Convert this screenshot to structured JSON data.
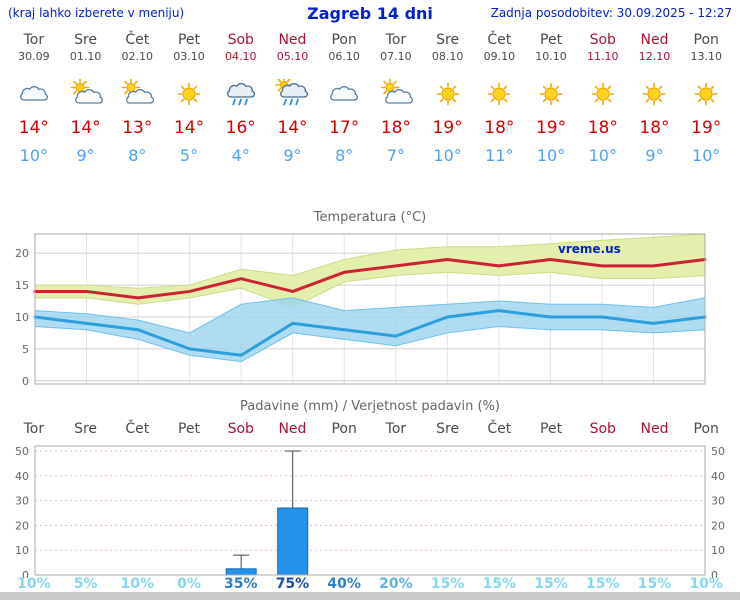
{
  "header": {
    "note": "(kraj lahko izberete v meniju)",
    "title": "Zagreb 14 dni",
    "updated": "Zadnja posodobitev: 30.09.2025 - 12:27"
  },
  "days": [
    {
      "name": "Tor",
      "date": "30.09",
      "weekend": false,
      "icon": "cloudy",
      "tmax": "14°",
      "tmin": "10°",
      "precip_prob": "10%"
    },
    {
      "name": "Sre",
      "date": "01.10",
      "weekend": false,
      "icon": "partly-cloudy",
      "tmax": "14°",
      "tmin": "9°",
      "precip_prob": "5%"
    },
    {
      "name": "Čet",
      "date": "02.10",
      "weekend": false,
      "icon": "partly-cloudy",
      "tmax": "13°",
      "tmin": "8°",
      "precip_prob": "10%"
    },
    {
      "name": "Pet",
      "date": "03.10",
      "weekend": false,
      "icon": "sunny",
      "tmax": "14°",
      "tmin": "5°",
      "precip_prob": "0%"
    },
    {
      "name": "Sob",
      "date": "04.10",
      "weekend": true,
      "icon": "rain",
      "tmax": "16°",
      "tmin": "4°",
      "precip_prob": "35%"
    },
    {
      "name": "Ned",
      "date": "05.10",
      "weekend": true,
      "icon": "rain-sun",
      "tmax": "14°",
      "tmin": "9°",
      "precip_prob": "75%"
    },
    {
      "name": "Pon",
      "date": "06.10",
      "weekend": false,
      "icon": "cloudy",
      "tmax": "17°",
      "tmin": "8°",
      "precip_prob": "40%"
    },
    {
      "name": "Tor",
      "date": "07.10",
      "weekend": false,
      "icon": "partly-cloudy",
      "tmax": "18°",
      "tmin": "7°",
      "precip_prob": "20%"
    },
    {
      "name": "Sre",
      "date": "08.10",
      "weekend": false,
      "icon": "sunny",
      "tmax": "19°",
      "tmin": "10°",
      "precip_prob": "15%"
    },
    {
      "name": "Čet",
      "date": "09.10",
      "weekend": false,
      "icon": "sunny",
      "tmax": "18°",
      "tmin": "11°",
      "precip_prob": "15%"
    },
    {
      "name": "Pet",
      "date": "10.10",
      "weekend": false,
      "icon": "sunny",
      "tmax": "19°",
      "tmin": "10°",
      "precip_prob": "15%"
    },
    {
      "name": "Sob",
      "date": "11.10",
      "weekend": true,
      "icon": "sunny",
      "tmax": "18°",
      "tmin": "10°",
      "precip_prob": "15%"
    },
    {
      "name": "Ned",
      "date": "12.10",
      "weekend": true,
      "icon": "sunny",
      "tmax": "18°",
      "tmin": "9°",
      "precip_prob": "15%"
    },
    {
      "name": "Pon",
      "date": "13.10",
      "weekend": false,
      "icon": "sunny",
      "tmax": "19°",
      "tmin": "10°",
      "precip_prob": "10%"
    }
  ],
  "chart_data": [
    {
      "type": "line",
      "title": "Temperatura (°C)",
      "watermark": "vreme.us",
      "categories": [
        "Tor 30.09",
        "Sre 01.10",
        "Čet 02.10",
        "Pet 03.10",
        "Sob 04.10",
        "Ned 05.10",
        "Pon 06.10",
        "Tor 07.10",
        "Sre 08.10",
        "Čet 09.10",
        "Pet 10.10",
        "Sob 11.10",
        "Ned 12.10",
        "Pon 13.10"
      ],
      "yticks": [
        0,
        5,
        10,
        15,
        20
      ],
      "ylim": [
        -0.5,
        23
      ],
      "grid": true,
      "series": [
        {
          "name": "tmax-line",
          "color": "#cc2233",
          "values": [
            14,
            14,
            13,
            14,
            16,
            14,
            17,
            18,
            19,
            18,
            19,
            18,
            18,
            19
          ]
        },
        {
          "name": "tmin-line",
          "color": "#2b9fdd",
          "values": [
            10,
            9,
            8,
            5,
            4,
            9,
            8,
            7,
            10,
            11,
            10,
            10,
            9,
            10
          ]
        }
      ],
      "bands": [
        {
          "name": "tmax-range-band",
          "fill": "#e4efad",
          "stroke": "#c8dd88",
          "opacity": 1,
          "upper": [
            15,
            15,
            14.5,
            15,
            17.5,
            16.5,
            19,
            20.5,
            21,
            21,
            21.5,
            22,
            22.5,
            23
          ],
          "lower": [
            13,
            13,
            12,
            13,
            14.5,
            11.5,
            15.5,
            16.5,
            17,
            16.5,
            17,
            16,
            16,
            16.5
          ]
        },
        {
          "name": "tmin-range-band",
          "fill": "#9fd4ef",
          "stroke": "#6cc0ea",
          "opacity": 0.82,
          "upper": [
            11,
            10.5,
            9.5,
            7.5,
            12,
            13,
            11,
            11.5,
            12,
            12.5,
            12,
            12,
            11.5,
            13
          ],
          "lower": [
            8.5,
            8,
            6.5,
            4,
            3,
            7.5,
            6.5,
            5.5,
            7.5,
            8.5,
            8,
            8,
            7.5,
            8
          ]
        }
      ]
    },
    {
      "type": "bar",
      "title": "Padavine (mm) / Verjetnost padavin (%)",
      "categories": [
        "Tor",
        "Sre",
        "Čet",
        "Pet",
        "Sob",
        "Ned",
        "Pon",
        "Tor",
        "Sre",
        "Čet",
        "Pet",
        "Sob",
        "Ned",
        "Pon"
      ],
      "yticks": [
        0,
        10,
        20,
        30,
        40,
        50
      ],
      "ylim": [
        0,
        52
      ],
      "precip_mm": [
        0,
        0,
        0,
        0,
        2.5,
        27,
        0,
        0,
        0,
        0,
        0,
        0,
        0,
        0
      ],
      "precip_max_mm": [
        0,
        0,
        0,
        0,
        8,
        50,
        0,
        0,
        0,
        0,
        0,
        0,
        0,
        0
      ],
      "probability_pct": [
        10,
        5,
        10,
        0,
        35,
        75,
        40,
        20,
        15,
        15,
        15,
        15,
        15,
        10
      ]
    }
  ],
  "colors": {
    "header_blue": "#0022cc",
    "weekday_gray": "#4a4a4a",
    "weekend_red": "#aa1133",
    "tmax_red": "#d40000",
    "tmin_blue": "#4da2f2",
    "bar_blue": "#2492e8",
    "bar_border": "#1668b0",
    "prob_low": "#86d7ee",
    "prob_mid_low": "#5ab4dc",
    "prob_mid": "#2f7fc4",
    "prob_high": "#1a4fae",
    "footer_gray": "#c9c9c9"
  }
}
